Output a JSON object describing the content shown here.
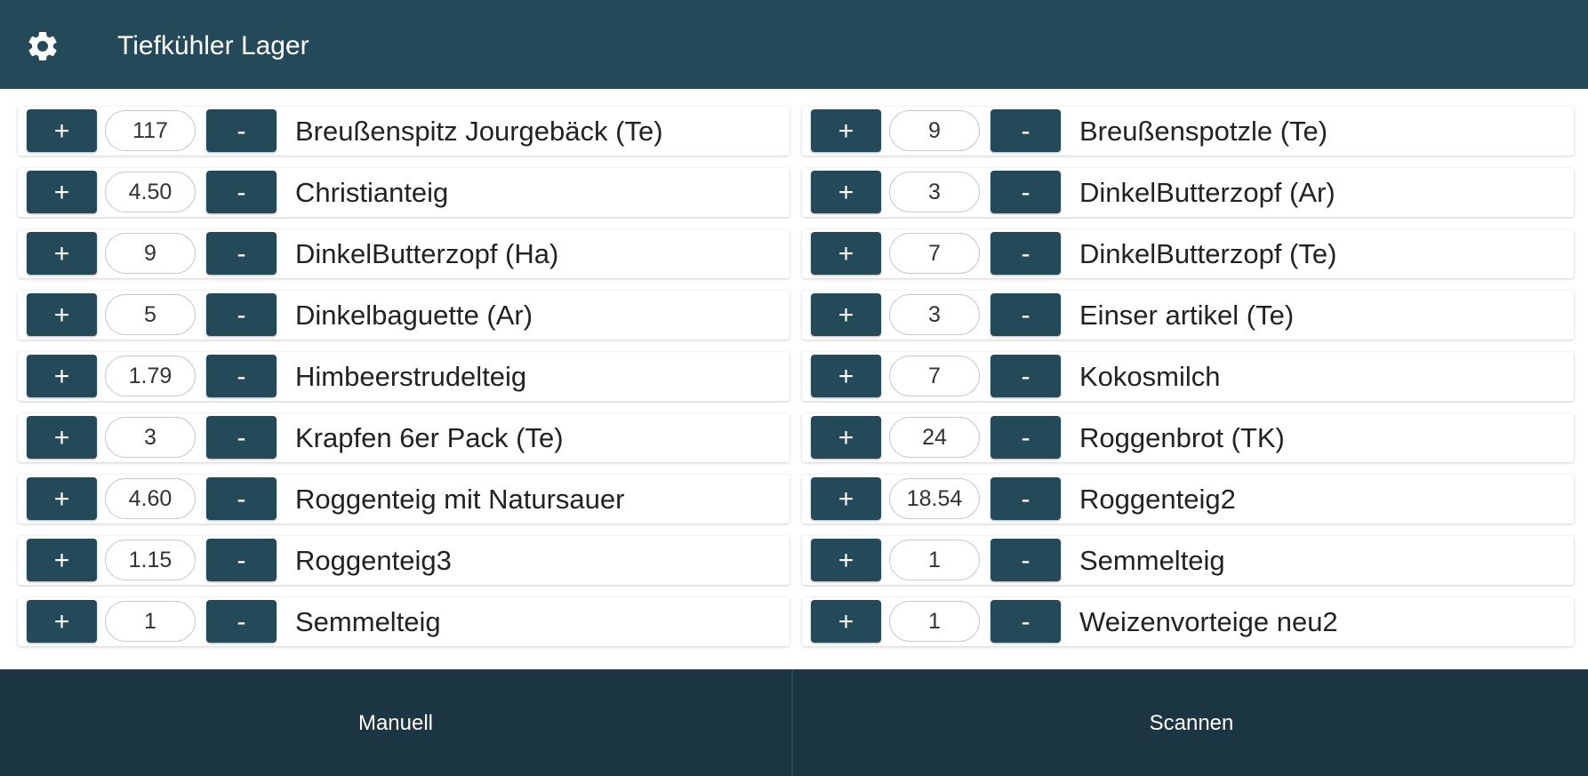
{
  "header": {
    "title": "Tiefkühler Lager",
    "settings_icon": "gear-icon"
  },
  "controls": {
    "plus_label": "+",
    "minus_label": "-"
  },
  "left_items": [
    {
      "qty": "117",
      "name": "Breußenspitz Jourgebäck (Te)"
    },
    {
      "qty": "4.50",
      "name": "Christianteig"
    },
    {
      "qty": "9",
      "name": "DinkelButterzopf (Ha)"
    },
    {
      "qty": "5",
      "name": "Dinkelbaguette (Ar)"
    },
    {
      "qty": "1.79",
      "name": "Himbeerstrudelteig"
    },
    {
      "qty": "3",
      "name": "Krapfen 6er Pack (Te)"
    },
    {
      "qty": "4.60",
      "name": "Roggenteig mit Natursauer"
    },
    {
      "qty": "1.15",
      "name": "Roggenteig3"
    },
    {
      "qty": "1",
      "name": "Semmelteig"
    }
  ],
  "right_items": [
    {
      "qty": "9",
      "name": "Breußenspotzle (Te)"
    },
    {
      "qty": "3",
      "name": "DinkelButterzopf (Ar)"
    },
    {
      "qty": "7",
      "name": "DinkelButterzopf (Te)"
    },
    {
      "qty": "3",
      "name": "Einser artikel (Te)"
    },
    {
      "qty": "7",
      "name": "Kokosmilch"
    },
    {
      "qty": "24",
      "name": "Roggenbrot (TK)"
    },
    {
      "qty": "18.54",
      "name": "Roggenteig2"
    },
    {
      "qty": "1",
      "name": "Semmelteig"
    },
    {
      "qty": "1",
      "name": "Weizenvorteige neu2"
    }
  ],
  "footer": {
    "manual_label": "Manuell",
    "scan_label": "Scannen"
  },
  "colors": {
    "primary": "#244a5a",
    "footer": "#1c3542"
  }
}
